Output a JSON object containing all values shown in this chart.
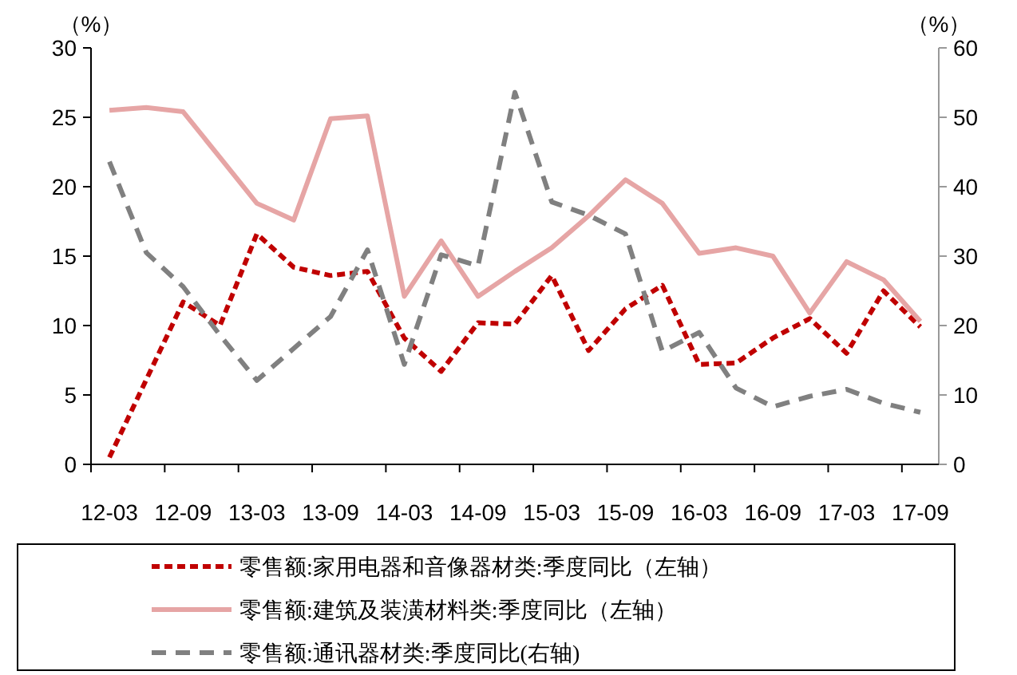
{
  "chart_data": {
    "type": "line",
    "ylabel": "（%）",
    "y2label": "（%）",
    "categories": [
      "12-03",
      null,
      "12-09",
      null,
      "13-03",
      null,
      "13-09",
      null,
      "14-03",
      null,
      "14-09",
      null,
      "15-03",
      null,
      "15-09",
      null,
      "16-03",
      null,
      "16-09",
      null,
      "17-03",
      null,
      "17-09"
    ],
    "ylim": [
      0,
      30
    ],
    "yticks": [
      0,
      5,
      10,
      15,
      20,
      25,
      30
    ],
    "y2lim": [
      0,
      60
    ],
    "y2ticks": [
      0,
      10,
      20,
      30,
      40,
      50,
      60
    ],
    "legend": "bottom",
    "grid": false,
    "series": [
      {
        "name": "零售额:家用电器和音像器材类:季度同比（左轴）",
        "color": "#c00000",
        "line_style": "dashed",
        "values": [
          0.5,
          6.1,
          11.7,
          10.0,
          16.6,
          14.2,
          13.6,
          13.9,
          9.1,
          6.7,
          10.2,
          10.1,
          13.6,
          8.2,
          11.2,
          12.9,
          7.2,
          7.3,
          9.1,
          10.5,
          8.0,
          12.5,
          9.9
        ]
      },
      {
        "name": "零售额:建筑及装潢材料类:季度同比（左轴）",
        "color": "#e6a5a5",
        "line_style": "solid",
        "values": [
          25.5,
          25.7,
          25.4,
          22.1,
          18.8,
          17.6,
          24.9,
          25.1,
          12.1,
          16.1,
          12.1,
          13.9,
          15.6,
          17.9,
          20.5,
          18.8,
          15.2,
          15.6,
          15.0,
          10.9,
          14.6,
          13.3,
          10.3
        ]
      },
      {
        "name": "零售额:通讯器材类:季度同比(右轴)",
        "color": "#808080",
        "line_style": "dashed",
        "axis": "y2",
        "values": [
          43.6,
          30.5,
          25.6,
          18.6,
          12.1,
          16.7,
          21.3,
          30.9,
          14.4,
          30.2,
          28.6,
          53.6,
          37.8,
          35.9,
          33.2,
          16.3,
          19.0,
          11.0,
          8.3,
          9.8,
          10.8,
          8.8,
          7.5
        ]
      }
    ]
  }
}
